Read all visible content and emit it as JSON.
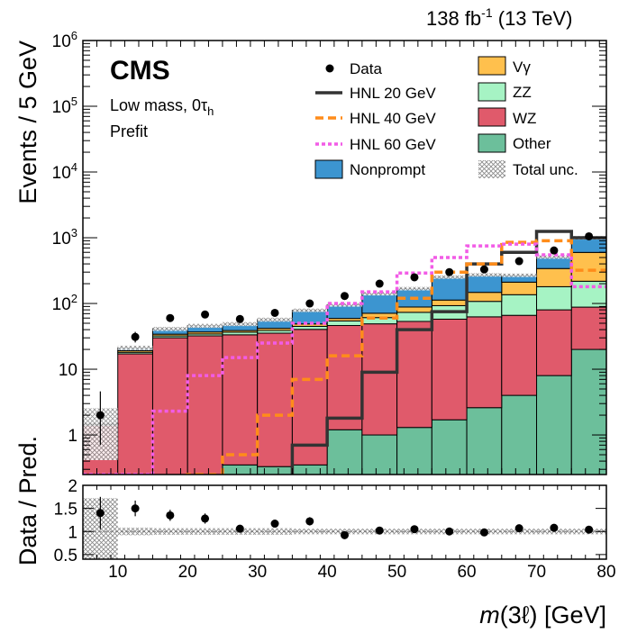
{
  "header": {
    "luminosity_main": "138 fb",
    "luminosity_exp": "-1",
    "energy": " (13 TeV)",
    "experiment": "CMS",
    "region_prefix": "Low mass, 0",
    "region_tau": "τ",
    "region_sub": "h",
    "stage": "Prefit"
  },
  "chart_data": {
    "type": "bar",
    "stacked": true,
    "scale": "log",
    "xlabel_italic": "m",
    "xlabel_rest": "(3ℓ) [GeV]",
    "ylabel": "Events / 5 GeV",
    "ratio_ylabel": "Data / Pred.",
    "xlim": [
      5,
      80
    ],
    "ylim": [
      0.25,
      1000000
    ],
    "ratio_ylim": [
      0.4,
      2.0
    ],
    "bin_edges": [
      5,
      10,
      15,
      20,
      25,
      30,
      35,
      40,
      45,
      50,
      55,
      60,
      65,
      70,
      75,
      80
    ],
    "x_ticks": [
      "10",
      "20",
      "30",
      "40",
      "50",
      "60",
      "70",
      "80"
    ],
    "x_tick_values": [
      10,
      20,
      30,
      40,
      50,
      60,
      70,
      80
    ],
    "y_ticks": [
      "1",
      "10",
      "10",
      "10",
      "10",
      "10",
      "10"
    ],
    "y_tick_values": [
      1,
      10,
      100,
      1000,
      10000,
      100000,
      1000000
    ],
    "y_tick_exps": [
      "",
      "",
      "2",
      "3",
      "4",
      "5",
      "6"
    ],
    "ratio_ticks": [
      "0.5",
      "1",
      "1.5",
      "2"
    ],
    "ratio_tick_values": [
      0.5,
      1.0,
      1.5,
      2.0
    ],
    "stack": [
      {
        "name": "Other",
        "color": "#6cbf9b",
        "values": [
          0.1,
          0.1,
          0.1,
          0.15,
          0.35,
          0.33,
          0.35,
          1.2,
          1.0,
          1.3,
          1.7,
          2.6,
          4.0,
          8.0,
          20.0
        ]
      },
      {
        "name": "WZ",
        "color": "#e05a6b",
        "values": [
          1.3,
          17.0,
          30.0,
          32.0,
          33.0,
          35.0,
          40.0,
          45.0,
          48.0,
          52.0,
          56.0,
          60.0,
          62.0,
          72.0,
          68.0
        ]
      },
      {
        "name": "ZZ",
        "color": "#a6f3c4",
        "values": [
          0.05,
          1.0,
          2.0,
          2.2,
          3.2,
          3.5,
          4.5,
          8.0,
          12.0,
          20.0,
          35.0,
          45.0,
          70.0,
          100.0,
          130.0
        ]
      },
      {
        "name": "Vγ",
        "color": "#ffc04d",
        "values": [
          0.02,
          1.0,
          2.0,
          2.5,
          2.2,
          3.0,
          4.0,
          5.0,
          10.0,
          15.0,
          20.0,
          40.0,
          75.0,
          160.0,
          380.0
        ]
      },
      {
        "name": "Nonprompt",
        "color": "#3c95d0",
        "values": [
          0.01,
          2.0,
          7.0,
          9.0,
          10.0,
          15.0,
          30.0,
          36.0,
          70.0,
          80.0,
          140.0,
          125.0,
          58.0,
          170.0,
          400.0
        ]
      }
    ],
    "data_points": {
      "name": "Data",
      "x": [
        7.5,
        12.5,
        17.5,
        22.5,
        27.5,
        32.5,
        37.5,
        42.5,
        47.5,
        52.5,
        57.5,
        62.5,
        67.5,
        72.5,
        77.5
      ],
      "y": [
        2.0,
        31.0,
        60.0,
        68.0,
        58.0,
        72.0,
        100.0,
        130.0,
        200.0,
        250.0,
        300.0,
        330.0,
        440.0,
        640.0,
        1050.0
      ],
      "err_up": [
        2.6,
        6.0,
        8.0,
        8.5,
        8.0,
        9.0,
        10.0,
        11.5,
        14.0,
        16.0,
        17.5,
        18.0,
        21.0,
        25.0,
        32.0
      ],
      "err_down": [
        1.3,
        5.5,
        7.5,
        8.0,
        7.5,
        8.5,
        10.0,
        11.0,
        14.0,
        16.0,
        17.0,
        18.0,
        21.0,
        25.0,
        32.0
      ]
    },
    "signals": [
      {
        "name": "HNL 20 GeV",
        "color": "#333333",
        "dash": "",
        "values": [
          0.1,
          0.1,
          0.1,
          0.1,
          0.1,
          0.1,
          0.7,
          1.8,
          9.0,
          40.0,
          75.0,
          400.0,
          600.0,
          1250.0,
          1000.0
        ]
      },
      {
        "name": "HNL 40 GeV",
        "color": "#ff8c1a",
        "dash": "9,5",
        "values": [
          0.1,
          0.1,
          0.2,
          0.25,
          0.5,
          2.0,
          7.0,
          16.0,
          60.0,
          120.0,
          300.0,
          400.0,
          850.0,
          900.0,
          320.0
        ]
      },
      {
        "name": "HNL 60 GeV",
        "color": "#f25ce6",
        "dash": "4,3",
        "values": [
          0.25,
          0.25,
          2.3,
          8.0,
          15.0,
          25.0,
          50.0,
          100.0,
          150.0,
          290.0,
          500.0,
          750.0,
          800.0,
          550.0,
          180.0
        ]
      }
    ],
    "ratio": {
      "values": [
        1.4,
        1.5,
        1.35,
        1.28,
        1.06,
        1.17,
        1.22,
        0.92,
        1.02,
        1.05,
        1.0,
        0.98,
        1.07,
        1.08,
        1.04
      ],
      "err": [
        0.35,
        0.17,
        0.12,
        0.11,
        0.07,
        0.08,
        0.09,
        0.05,
        0.05,
        0.05,
        0.05,
        0.04,
        0.04,
        0.03,
        0.03
      ],
      "unc": [
        0.72,
        0.08,
        0.07,
        0.07,
        0.07,
        0.07,
        0.06,
        0.06,
        0.06,
        0.06,
        0.06,
        0.06,
        0.06,
        0.06,
        0.06
      ]
    }
  },
  "legend": {
    "data": "Data",
    "hnl20": "HNL 20 GeV",
    "hnl40": "HNL 40 GeV",
    "hnl60": "HNL 60 GeV",
    "nonprompt": "Nonprompt",
    "vgamma": "Vγ",
    "zz": "ZZ",
    "wz": "WZ",
    "other": "Other",
    "total_unc": "Total unc."
  }
}
